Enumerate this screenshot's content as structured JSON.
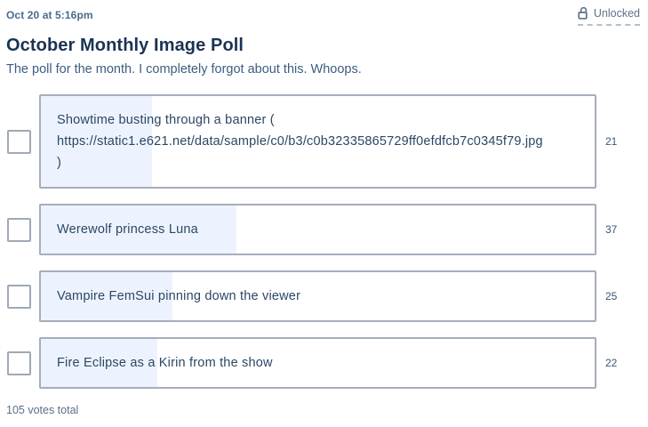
{
  "header": {
    "date": "Oct 20 at 5:16pm",
    "lock_status": "Unlocked",
    "title": "October Monthly Image Poll",
    "description": "The poll for the month. I completely forgot about this. Whoops."
  },
  "poll": {
    "total_votes": 105,
    "total_label": "105 votes total",
    "options": [
      {
        "label": "Showtime busting through a banner (\nhttps://static1.e621.net/data/sample/c0/b3/c0b32335865729ff0efdfcb7c0345f79.jpg\n)",
        "votes": 21
      },
      {
        "label": "Werewolf princess Luna",
        "votes": 37
      },
      {
        "label": "Vampire FemSui pinning down the viewer",
        "votes": 25
      },
      {
        "label": "Fire Eclipse as a Kirin from the show",
        "votes": 22
      }
    ]
  },
  "colors": {
    "title_text": "#1b3354",
    "date_text": "#4a6b8c",
    "description_text": "#3d5c82",
    "option_text": "#2b4765",
    "progress_fill": "#edf3fe",
    "box_border": "#a6aeba",
    "checkbox_border": "#9fa9b5",
    "muted_text": "#5b7086"
  },
  "icons": {
    "lock": "unlock-icon"
  }
}
